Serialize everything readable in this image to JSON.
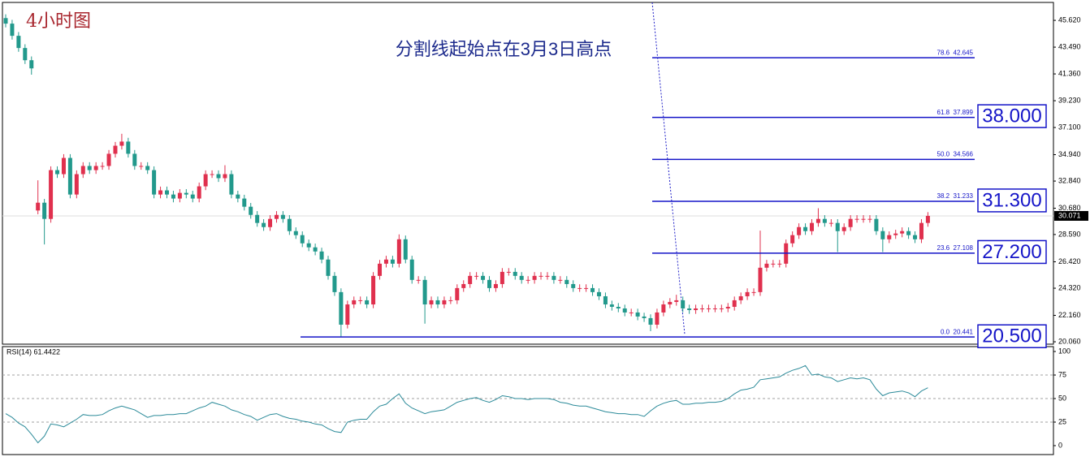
{
  "chart_data": {
    "type": "candlestick",
    "title": "4小时图",
    "annotation": "分割线起始点在3月3日高点",
    "ylim": [
      19.87,
      46.98
    ],
    "yticks": [
      {
        "value": 45.62,
        "label": "45.620"
      },
      {
        "value": 43.49,
        "label": "43.490"
      },
      {
        "value": 41.36,
        "label": "41.360"
      },
      {
        "value": 39.23,
        "label": "39.230"
      },
      {
        "value": 37.1,
        "label": "37.100"
      },
      {
        "value": 34.94,
        "label": "34.940"
      },
      {
        "value": 32.84,
        "label": "32.840"
      },
      {
        "value": 30.68,
        "label": "30.680"
      },
      {
        "value": 28.59,
        "label": "28.590"
      },
      {
        "value": 26.42,
        "label": "26.420"
      },
      {
        "value": 24.32,
        "label": "24.320"
      },
      {
        "value": 22.16,
        "label": "22.160"
      },
      {
        "value": 20.06,
        "label": "20.060"
      }
    ],
    "last_price": 30.071,
    "up_color": "#e0304e",
    "down_color": "#22998c",
    "open": [
      45.8,
      45.36,
      44.39,
      43.42,
      42.45,
      30.5,
      31.12,
      29.83,
      33.71,
      33.39,
      34.68,
      31.77,
      33.39,
      34.04,
      33.71,
      34.04,
      34.04,
      35.01,
      35.65,
      35.98,
      35.01,
      34.04,
      34.04,
      33.71,
      31.77,
      32.1,
      31.77,
      31.45,
      31.9,
      31.77,
      31.45,
      32.42,
      33.39,
      33.39,
      33.07,
      33.39,
      31.77,
      31.45,
      30.8,
      30.15,
      29.51,
      29.18,
      29.83,
      30.15,
      29.83,
      28.86,
      28.54,
      27.89,
      27.57,
      27.24,
      26.6,
      25.3,
      24.01,
      21.42,
      23.03,
      23.36,
      23.36,
      23.03,
      25.3,
      26.27,
      26.6,
      26.27,
      28.21,
      26.6,
      24.98,
      24.98,
      23.03,
      23.36,
      23.03,
      23.36,
      23.36,
      24.33,
      24.65,
      25.3,
      25.3,
      24.98,
      24.33,
      24.65,
      25.62,
      25.62,
      25.3,
      24.98,
      24.98,
      25.3,
      25.3,
      25.3,
      24.98,
      24.98,
      24.65,
      24.33,
      24.33,
      24.33,
      24.01,
      23.68,
      23.03,
      22.84,
      22.71,
      22.39,
      22.39,
      22.07,
      21.94,
      21.42,
      22.39,
      23.03,
      23.23,
      23.36,
      22.71,
      22.58,
      22.71,
      22.71,
      22.71,
      22.71,
      22.71,
      22.84,
      23.36,
      23.68,
      24.01,
      24.01,
      25.95,
      26.27,
      26.27,
      26.27,
      27.89,
      28.54,
      29.18,
      28.86,
      29.51,
      29.83,
      29.51,
      29.51,
      28.86,
      29.18,
      29.83,
      29.83,
      29.83,
      29.83,
      28.86,
      28.21,
      28.54,
      28.67,
      28.86,
      28.54,
      28.21,
      29.51
    ],
    "high": [
      46.1,
      45.66,
      44.69,
      43.72,
      42.75,
      32.9,
      31.42,
      34.01,
      34.01,
      34.98,
      34.98,
      33.69,
      34.34,
      34.34,
      34.34,
      34.34,
      35.31,
      35.95,
      36.6,
      36.28,
      35.31,
      34.34,
      34.34,
      34.01,
      32.4,
      32.4,
      32.07,
      32.2,
      32.2,
      32.07,
      32.72,
      33.69,
      33.69,
      33.69,
      34.1,
      33.69,
      32.07,
      31.75,
      31.1,
      30.45,
      29.81,
      30.13,
      30.45,
      30.45,
      30.13,
      29.16,
      28.84,
      28.19,
      27.87,
      27.54,
      26.9,
      25.6,
      24.31,
      23.33,
      23.66,
      23.66,
      23.66,
      25.6,
      26.57,
      26.9,
      26.9,
      28.6,
      28.51,
      26.9,
      25.28,
      25.28,
      23.66,
      23.66,
      23.66,
      23.66,
      24.63,
      24.95,
      25.6,
      25.6,
      25.6,
      25.28,
      24.95,
      25.92,
      25.92,
      25.92,
      25.6,
      25.28,
      25.6,
      25.6,
      25.6,
      25.6,
      25.28,
      25.28,
      24.95,
      24.63,
      24.63,
      24.63,
      24.31,
      23.98,
      23.33,
      23.14,
      23.01,
      22.69,
      22.69,
      22.37,
      22.24,
      22.69,
      23.33,
      23.53,
      23.8,
      23.66,
      23.01,
      23.01,
      23.01,
      23.01,
      23.01,
      23.01,
      23.14,
      23.66,
      23.98,
      24.31,
      24.31,
      28.9,
      26.57,
      26.57,
      26.57,
      28.19,
      28.84,
      29.48,
      29.48,
      29.81,
      30.68,
      30.13,
      29.81,
      29.81,
      29.48,
      30.13,
      30.13,
      30.13,
      30.13,
      30.13,
      29.16,
      28.84,
      28.97,
      29.16,
      29.16,
      28.84,
      29.81,
      30.37
    ],
    "low": [
      45.06,
      44.09,
      43.12,
      42.15,
      41.3,
      30.2,
      27.8,
      29.53,
      33.09,
      33.09,
      31.47,
      31.47,
      33.09,
      33.41,
      33.41,
      33.74,
      33.74,
      34.71,
      35.35,
      34.71,
      33.74,
      33.74,
      33.41,
      31.47,
      31.47,
      31.47,
      31.15,
      31.15,
      31.47,
      31.15,
      31.15,
      32.12,
      33.09,
      32.77,
      32.77,
      31.47,
      31.15,
      30.5,
      29.85,
      29.21,
      28.88,
      28.88,
      29.53,
      29.53,
      28.56,
      28.24,
      27.59,
      27.27,
      26.94,
      26.3,
      25.0,
      23.71,
      20.44,
      21.12,
      22.73,
      23.06,
      22.73,
      22.73,
      25.0,
      25.97,
      25.97,
      25.97,
      26.3,
      24.68,
      24.68,
      21.5,
      22.73,
      22.73,
      22.73,
      23.06,
      23.06,
      24.03,
      24.35,
      25.0,
      24.68,
      24.03,
      24.03,
      24.35,
      25.32,
      25.0,
      24.68,
      24.68,
      24.68,
      25.0,
      25.0,
      24.68,
      24.68,
      24.35,
      24.03,
      24.03,
      24.03,
      23.71,
      23.38,
      22.73,
      22.54,
      22.41,
      22.09,
      22.09,
      21.77,
      21.64,
      20.9,
      21.12,
      22.09,
      22.73,
      22.93,
      22.41,
      22.28,
      22.28,
      22.41,
      22.41,
      22.41,
      22.41,
      22.41,
      22.54,
      23.06,
      23.38,
      23.71,
      23.71,
      25.65,
      25.97,
      25.97,
      25.97,
      27.59,
      28.24,
      28.56,
      28.56,
      29.21,
      29.21,
      29.21,
      27.2,
      28.56,
      28.88,
      29.53,
      29.53,
      29.53,
      28.56,
      27.2,
      27.91,
      28.24,
      28.37,
      28.24,
      27.91,
      27.91,
      29.21
    ],
    "close": [
      45.36,
      44.39,
      43.42,
      42.45,
      41.8,
      31.12,
      29.83,
      33.71,
      33.39,
      34.68,
      31.77,
      33.39,
      34.04,
      33.71,
      34.04,
      34.04,
      35.01,
      35.65,
      35.98,
      35.01,
      34.04,
      34.04,
      33.71,
      31.77,
      32.1,
      31.77,
      31.45,
      31.9,
      31.77,
      31.45,
      32.42,
      33.39,
      33.39,
      33.07,
      33.39,
      31.77,
      31.45,
      30.8,
      30.15,
      29.51,
      29.18,
      29.83,
      30.15,
      29.83,
      28.86,
      28.54,
      27.89,
      27.57,
      27.24,
      26.6,
      25.3,
      24.01,
      21.42,
      23.03,
      23.36,
      23.36,
      23.03,
      25.3,
      26.27,
      26.6,
      26.27,
      28.21,
      26.6,
      24.98,
      24.98,
      23.03,
      23.36,
      23.03,
      23.36,
      23.36,
      24.33,
      24.65,
      25.3,
      25.3,
      24.98,
      24.33,
      24.65,
      25.62,
      25.62,
      25.3,
      24.98,
      24.98,
      25.3,
      25.3,
      25.3,
      24.98,
      24.98,
      24.65,
      24.33,
      24.33,
      24.33,
      24.01,
      23.68,
      23.03,
      22.84,
      22.71,
      22.39,
      22.39,
      22.07,
      21.94,
      21.42,
      22.39,
      23.03,
      23.23,
      23.36,
      22.71,
      22.58,
      22.71,
      22.71,
      22.71,
      22.71,
      22.71,
      22.84,
      23.36,
      23.68,
      24.01,
      24.01,
      25.95,
      26.27,
      26.27,
      26.27,
      27.89,
      28.54,
      29.18,
      28.86,
      29.51,
      29.83,
      29.51,
      29.51,
      28.86,
      29.18,
      29.83,
      29.83,
      29.83,
      29.83,
      28.86,
      28.21,
      28.54,
      28.67,
      28.86,
      28.54,
      28.21,
      29.51,
      30.07
    ],
    "fib_color": "#1515c8",
    "fib_levels": [
      {
        "label": "78.6  42.645",
        "value": 42.645
      },
      {
        "label": "61.8  37.899",
        "value": 37.899
      },
      {
        "label": "50.0  34.566",
        "value": 34.566
      },
      {
        "label": "38.2  31.233",
        "value": 31.233
      },
      {
        "label": "23.6  27.108",
        "value": 27.108
      },
      {
        "label": "0.0  20.441",
        "value": 20.441
      }
    ],
    "targets": [
      {
        "value": 38,
        "label": "38.000"
      },
      {
        "value": 31.3,
        "label": "31.300"
      },
      {
        "value": 27.2,
        "label": "27.200"
      },
      {
        "value": 20.5,
        "label": "20.500"
      }
    ],
    "rsi": {
      "type": "line",
      "label": "RSI(14) 61.4422",
      "color": "#2b8a99",
      "ylim": [
        -9.5,
        105.2
      ],
      "yticks": [
        0,
        25,
        50,
        75,
        100
      ],
      "values": [
        34,
        30,
        24,
        20,
        12,
        3,
        10,
        23,
        22,
        20,
        24,
        28,
        33,
        32,
        32,
        33,
        37,
        40,
        42,
        40,
        38,
        34,
        30,
        32,
        32,
        33,
        33,
        34,
        34,
        37,
        40,
        42,
        46,
        44,
        42,
        38,
        36,
        33,
        31,
        27,
        30,
        33,
        34,
        31,
        29,
        28,
        26,
        25,
        23,
        22,
        18,
        15,
        14,
        25,
        27,
        28,
        28,
        36,
        42,
        44,
        50,
        55,
        45,
        40,
        37,
        34,
        36,
        37,
        38,
        42,
        46,
        48,
        50,
        51,
        48,
        46,
        49,
        53,
        52,
        50,
        50,
        49,
        50,
        50,
        50,
        49,
        46,
        45,
        43,
        42,
        42,
        40,
        38,
        36,
        35,
        34,
        34,
        33,
        33,
        31,
        37,
        42,
        45,
        47,
        48,
        44,
        44,
        45,
        45,
        46,
        46,
        47,
        50,
        55,
        59,
        60,
        62,
        70,
        71,
        72,
        73,
        77,
        80,
        82,
        85,
        75,
        76,
        73,
        72,
        68,
        70,
        72,
        71,
        72,
        70,
        60,
        53,
        56,
        57,
        58,
        56,
        52,
        58,
        61.4422
      ]
    }
  }
}
